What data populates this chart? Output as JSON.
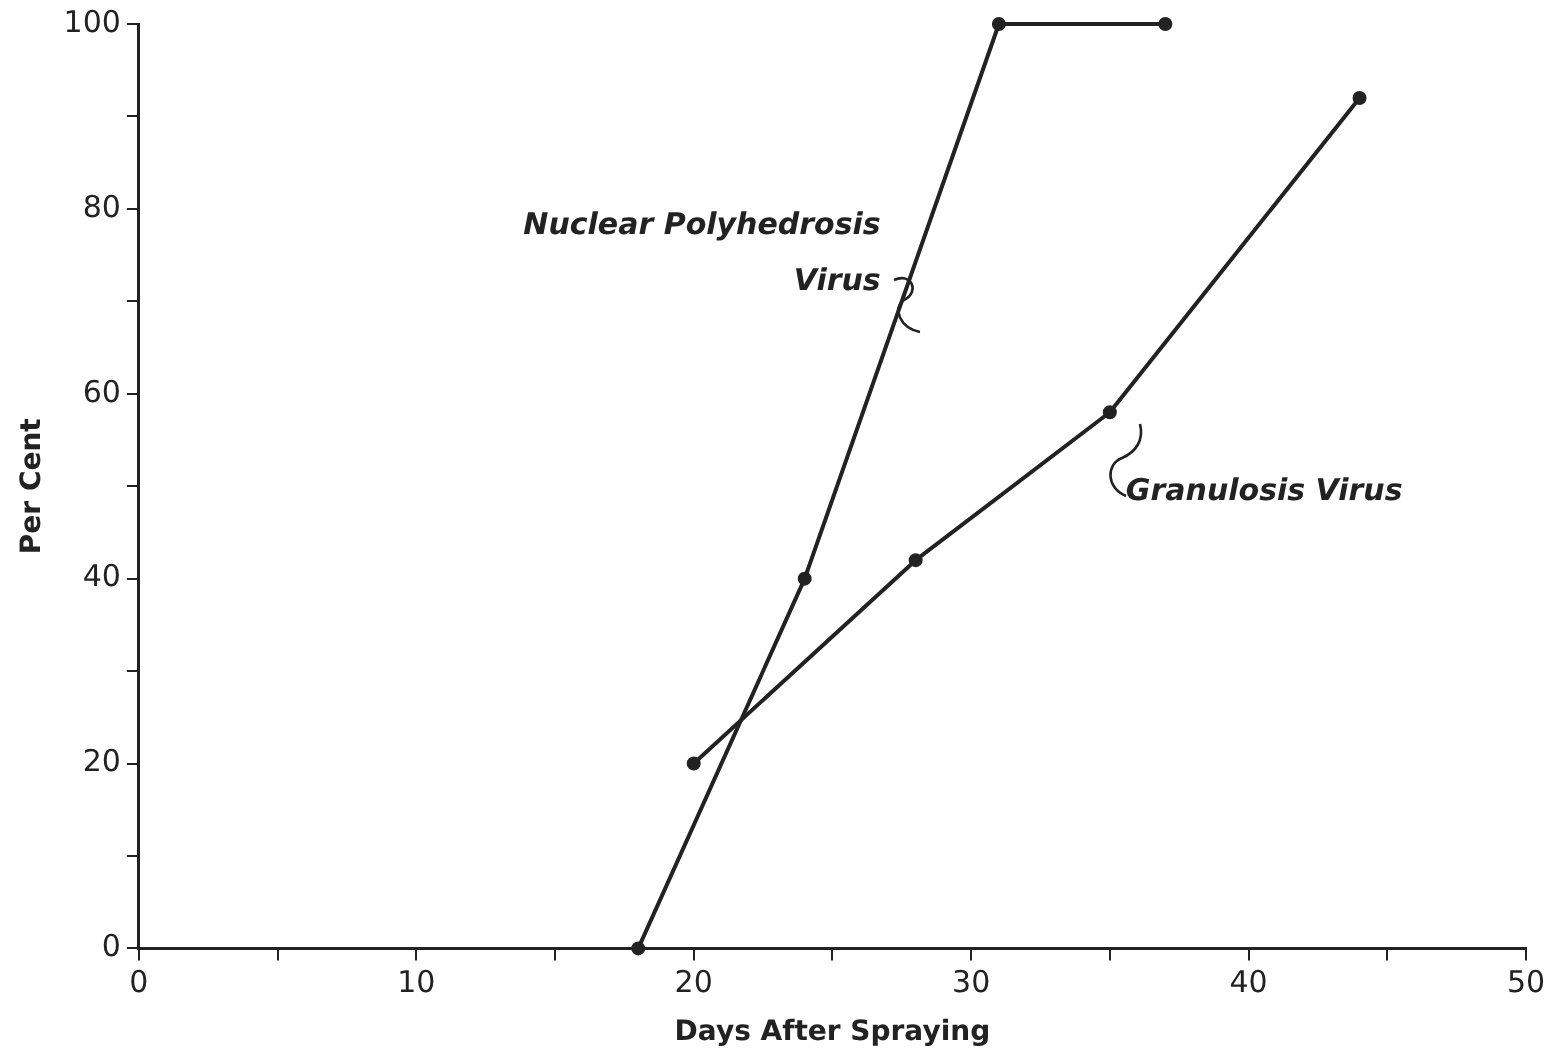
{
  "chart_data": {
    "type": "line",
    "xlabel": "Days After Spraying",
    "ylabel": "Per Cent",
    "xlim": [
      0,
      50
    ],
    "ylim": [
      0,
      100
    ],
    "xticks": [
      0,
      {
        "value": 5,
        "label": null
      },
      10,
      {
        "value": 15,
        "label": null
      },
      20,
      {
        "value": 25,
        "label": null
      },
      30,
      {
        "value": 35,
        "label": null
      },
      40,
      {
        "value": 45,
        "label": null
      },
      50
    ],
    "yticks": [
      0,
      {
        "value": 10,
        "label": null
      },
      20,
      {
        "value": 30,
        "label": null
      },
      40,
      {
        "value": 50,
        "label": null
      },
      60,
      {
        "value": 70,
        "label": null
      },
      80,
      {
        "value": 90,
        "label": null
      },
      100
    ],
    "series": [
      {
        "name": "Nuclear Polyhedrosis Virus",
        "color": "#222222",
        "x": [
          18,
          24,
          31,
          37
        ],
        "values": [
          0,
          40,
          100,
          100
        ]
      },
      {
        "name": "Granulosis Virus",
        "color": "#222222",
        "x": [
          20,
          28,
          35,
          44
        ],
        "values": [
          20,
          42,
          58,
          92
        ]
      }
    ],
    "grid": false,
    "legend": false,
    "marker": "circle",
    "line_style": "solid"
  }
}
